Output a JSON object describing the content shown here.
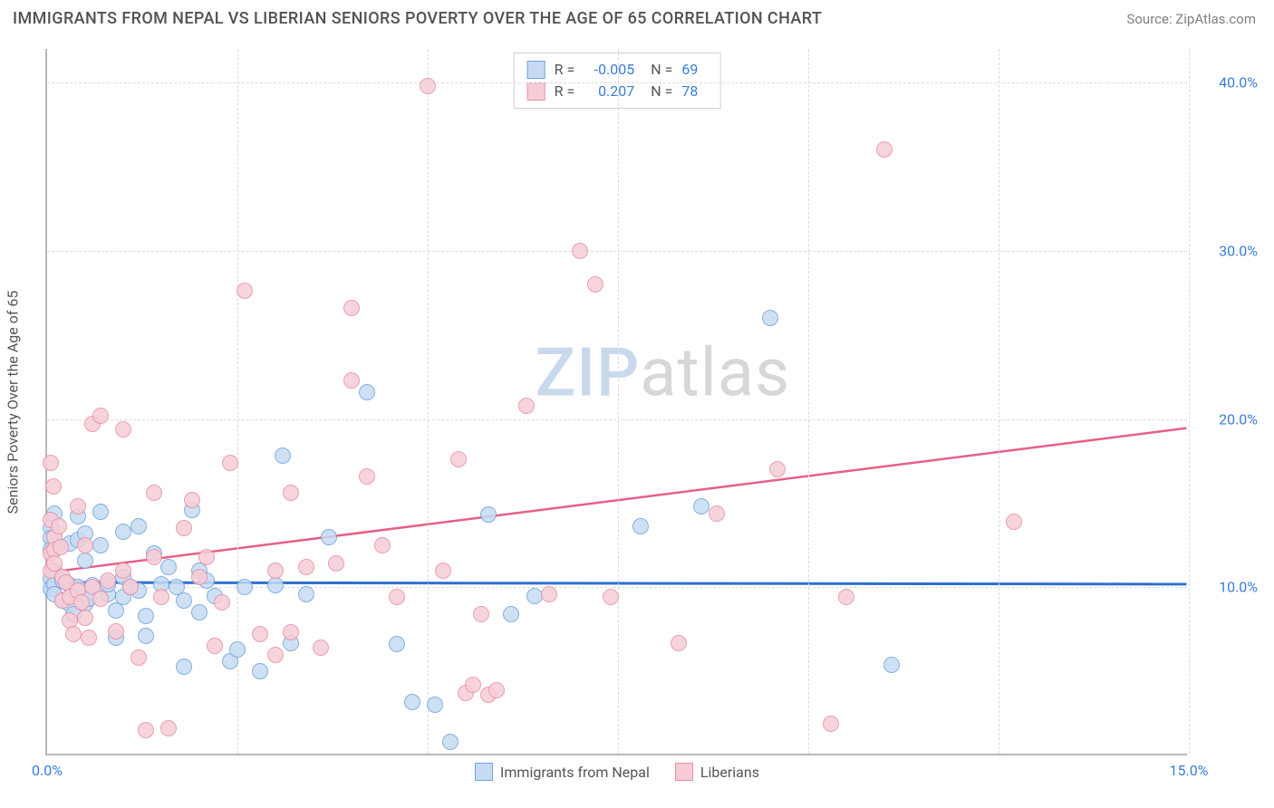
{
  "title": "IMMIGRANTS FROM NEPAL VS LIBERIAN SENIORS POVERTY OVER THE AGE OF 65 CORRELATION CHART",
  "source": "Source: ZipAtlas.com",
  "y_axis_label": "Seniors Poverty Over the Age of 65",
  "watermark": {
    "part1": "ZIP",
    "part2": "atlas"
  },
  "chart": {
    "type": "scatter",
    "xlim": [
      0,
      15
    ],
    "ylim": [
      0,
      42
    ],
    "x_ticks": [
      {
        "v": 0,
        "label": "0.0%"
      },
      {
        "v": 15,
        "label": "15.0%"
      }
    ],
    "y_ticks": [
      {
        "v": 10,
        "label": "10.0%"
      },
      {
        "v": 20,
        "label": "20.0%"
      },
      {
        "v": 30,
        "label": "30.0%"
      },
      {
        "v": 40,
        "label": "40.0%"
      }
    ],
    "x_grid_at": [
      2.5,
      5,
      7.5,
      10,
      12.5,
      15
    ],
    "background_color": "#ffffff",
    "grid_color": "#dcdcdc",
    "axis_color": "#b8b8b8",
    "tick_label_color": "#3b7dd8",
    "label_color": "#555555",
    "marker_radius": 9,
    "marker_opacity": 0.85,
    "title_fontsize": 18,
    "label_fontsize": 16
  },
  "series": [
    {
      "name": "Immigrants from Nepal",
      "fill": "#c6dbf2",
      "stroke": "#6fa3dd",
      "trend_color": "#2f6fd0",
      "trend_width": 3,
      "R": "-0.005",
      "N": "69",
      "trend": {
        "y_at_x0": 10.2,
        "y_at_xmax": 10.1
      },
      "points": [
        [
          0.05,
          13.5
        ],
        [
          0.05,
          12.9
        ],
        [
          0.05,
          12.2
        ],
        [
          0.05,
          10.5
        ],
        [
          0.05,
          9.9
        ],
        [
          0.1,
          14.4
        ],
        [
          0.1,
          13.0
        ],
        [
          0.1,
          11.0
        ],
        [
          0.1,
          10.2
        ],
        [
          0.1,
          9.6
        ],
        [
          0.2,
          10.4
        ],
        [
          0.2,
          9.2
        ],
        [
          0.3,
          12.6
        ],
        [
          0.3,
          10.1
        ],
        [
          0.3,
          9.0
        ],
        [
          0.35,
          8.4
        ],
        [
          0.4,
          14.2
        ],
        [
          0.4,
          12.8
        ],
        [
          0.4,
          10.0
        ],
        [
          0.5,
          13.2
        ],
        [
          0.5,
          11.6
        ],
        [
          0.5,
          9.0
        ],
        [
          0.55,
          9.3
        ],
        [
          0.6,
          10.1
        ],
        [
          0.7,
          14.5
        ],
        [
          0.7,
          12.5
        ],
        [
          0.8,
          9.6
        ],
        [
          0.8,
          10.2
        ],
        [
          0.9,
          7.0
        ],
        [
          0.9,
          8.6
        ],
        [
          1.0,
          13.3
        ],
        [
          1.0,
          10.6
        ],
        [
          1.0,
          9.4
        ],
        [
          1.1,
          10.0
        ],
        [
          1.2,
          13.6
        ],
        [
          1.2,
          9.8
        ],
        [
          1.3,
          8.3
        ],
        [
          1.3,
          7.1
        ],
        [
          1.4,
          12.0
        ],
        [
          1.5,
          10.2
        ],
        [
          1.6,
          11.2
        ],
        [
          1.7,
          10.0
        ],
        [
          1.8,
          5.3
        ],
        [
          1.8,
          9.2
        ],
        [
          1.9,
          14.6
        ],
        [
          2.0,
          11.0
        ],
        [
          2.0,
          8.5
        ],
        [
          2.1,
          10.4
        ],
        [
          2.2,
          9.5
        ],
        [
          2.4,
          5.6
        ],
        [
          2.5,
          6.3
        ],
        [
          2.6,
          10.0
        ],
        [
          2.8,
          5.0
        ],
        [
          3.0,
          10.1
        ],
        [
          3.1,
          17.8
        ],
        [
          3.2,
          6.7
        ],
        [
          3.4,
          9.6
        ],
        [
          3.7,
          13.0
        ],
        [
          4.2,
          21.6
        ],
        [
          4.6,
          6.6
        ],
        [
          4.8,
          3.2
        ],
        [
          5.1,
          3.0
        ],
        [
          5.3,
          0.8
        ],
        [
          5.8,
          14.3
        ],
        [
          6.1,
          8.4
        ],
        [
          6.4,
          9.5
        ],
        [
          7.8,
          13.6
        ],
        [
          8.6,
          14.8
        ],
        [
          9.5,
          26.0
        ],
        [
          11.1,
          5.4
        ]
      ]
    },
    {
      "name": "Liberians",
      "fill": "#f6cdd7",
      "stroke": "#e78fa4",
      "trend_color": "#e85f86",
      "trend_width": 2.5,
      "R": "0.207",
      "N": "78",
      "trend": {
        "y_at_x0": 10.8,
        "y_at_xmax": 19.4
      },
      "points": [
        [
          0.05,
          17.4
        ],
        [
          0.05,
          14.0
        ],
        [
          0.05,
          12.0
        ],
        [
          0.05,
          11.0
        ],
        [
          0.08,
          16.0
        ],
        [
          0.1,
          13.0
        ],
        [
          0.1,
          12.2
        ],
        [
          0.1,
          11.4
        ],
        [
          0.15,
          13.6
        ],
        [
          0.18,
          12.4
        ],
        [
          0.2,
          10.6
        ],
        [
          0.2,
          9.2
        ],
        [
          0.25,
          10.3
        ],
        [
          0.3,
          9.4
        ],
        [
          0.3,
          8.0
        ],
        [
          0.35,
          7.2
        ],
        [
          0.4,
          14.8
        ],
        [
          0.4,
          9.8
        ],
        [
          0.45,
          9.1
        ],
        [
          0.5,
          12.5
        ],
        [
          0.5,
          8.2
        ],
        [
          0.55,
          7.0
        ],
        [
          0.6,
          19.7
        ],
        [
          0.6,
          10.0
        ],
        [
          0.7,
          9.3
        ],
        [
          0.7,
          20.2
        ],
        [
          0.8,
          10.4
        ],
        [
          0.9,
          7.4
        ],
        [
          1.0,
          19.4
        ],
        [
          1.0,
          11.0
        ],
        [
          1.1,
          10.0
        ],
        [
          1.2,
          5.8
        ],
        [
          1.3,
          1.5
        ],
        [
          1.4,
          11.8
        ],
        [
          1.4,
          15.6
        ],
        [
          1.5,
          9.4
        ],
        [
          1.6,
          1.6
        ],
        [
          1.8,
          13.5
        ],
        [
          1.9,
          15.2
        ],
        [
          2.0,
          10.6
        ],
        [
          2.1,
          11.8
        ],
        [
          2.2,
          6.5
        ],
        [
          2.3,
          9.1
        ],
        [
          2.4,
          17.4
        ],
        [
          2.6,
          27.6
        ],
        [
          2.8,
          7.2
        ],
        [
          3.0,
          11.0
        ],
        [
          3.0,
          6.0
        ],
        [
          3.2,
          7.3
        ],
        [
          3.2,
          15.6
        ],
        [
          3.4,
          11.2
        ],
        [
          3.6,
          6.4
        ],
        [
          3.8,
          11.4
        ],
        [
          4.0,
          26.6
        ],
        [
          4.0,
          22.3
        ],
        [
          4.2,
          16.6
        ],
        [
          4.4,
          12.5
        ],
        [
          4.6,
          9.4
        ],
        [
          5.0,
          39.8
        ],
        [
          5.2,
          11.0
        ],
        [
          5.4,
          17.6
        ],
        [
          5.5,
          3.7
        ],
        [
          5.6,
          4.2
        ],
        [
          5.7,
          8.4
        ],
        [
          5.8,
          3.6
        ],
        [
          5.9,
          3.9
        ],
        [
          6.3,
          20.8
        ],
        [
          6.6,
          9.6
        ],
        [
          7.0,
          30.0
        ],
        [
          7.2,
          28.0
        ],
        [
          7.4,
          9.4
        ],
        [
          8.3,
          6.7
        ],
        [
          8.8,
          14.4
        ],
        [
          9.6,
          17.0
        ],
        [
          10.3,
          1.9
        ],
        [
          10.5,
          9.4
        ],
        [
          11.0,
          36.0
        ],
        [
          12.7,
          13.9
        ]
      ]
    }
  ]
}
